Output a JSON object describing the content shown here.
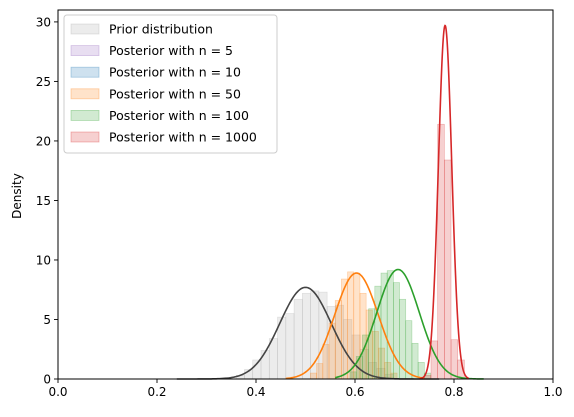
{
  "chart_data": {
    "type": "histogram+kde",
    "xlabel": "",
    "ylabel": "Density",
    "xlim": [
      0.0,
      1.0
    ],
    "ylim": [
      0,
      31
    ],
    "x_ticks": [
      "0.0",
      "0.2",
      "0.4",
      "0.6",
      "0.8",
      "1.0"
    ],
    "y_ticks": [
      "0",
      "5",
      "10",
      "15",
      "20",
      "25",
      "30"
    ],
    "legend_position": "top-left",
    "grid": false,
    "series": [
      {
        "name": "Prior distribution",
        "color": "#aaaaaa",
        "line_color": "#444444",
        "hist": {
          "start": 0.36,
          "width": 0.0167,
          "values": [
            0.3,
            0.8,
            1.6,
            2.4,
            3.4,
            5.2,
            5.5,
            6.7,
            7.2,
            7.4,
            7.3,
            6.1,
            6.2,
            5.0,
            3.7,
            2.5,
            1.4,
            0.9,
            0.4
          ]
        },
        "kde": {
          "type": "normal",
          "mean": 0.5,
          "sd": 0.052,
          "peak": 7.7,
          "range": [
            0.24,
            0.77
          ]
        }
      },
      {
        "name": "Posterior with n = 5",
        "color": "#9467bd",
        "hist": null,
        "kde": null
      },
      {
        "name": "Posterior with n = 10",
        "color": "#1f77b4",
        "hist": null,
        "kde": null
      },
      {
        "name": "Posterior with n = 50",
        "color": "#ff7f0e",
        "line_color": "#ff7f0e",
        "hist": {
          "start": 0.51,
          "width": 0.0125,
          "values": [
            0.5,
            1.3,
            2.9,
            4.7,
            6.6,
            8.4,
            9.0,
            8.9,
            7.2,
            5.8,
            4.0,
            2.6,
            1.4,
            0.5
          ]
        },
        "kde": {
          "type": "normal",
          "mean": 0.603,
          "sd": 0.044,
          "peak": 8.9,
          "range": [
            0.46,
            0.74
          ]
        }
      },
      {
        "name": "Posterior with n = 100",
        "color": "#2ca02c",
        "line_color": "#2ca02c",
        "hist": {
          "start": 0.59,
          "width": 0.0125,
          "values": [
            0.6,
            1.9,
            3.7,
            5.9,
            7.8,
            8.9,
            9.1,
            8.1,
            6.7,
            4.9,
            3.0,
            1.4,
            0.5
          ]
        },
        "kde": {
          "type": "normal",
          "mean": 0.687,
          "sd": 0.043,
          "peak": 9.2,
          "range": [
            0.56,
            0.86
          ]
        }
      },
      {
        "name": "Posterior with n = 1000",
        "color": "#d62728",
        "line_color": "#d62728",
        "hist": {
          "start": 0.74,
          "width": 0.0135,
          "values": [
            0.3,
            3.2,
            21.4,
            18.4,
            3.3,
            1.6
          ]
        },
        "kde": {
          "type": "normal",
          "mean": 0.782,
          "sd": 0.0135,
          "peak": 29.7,
          "range": [
            0.73,
            0.83
          ]
        }
      }
    ]
  }
}
